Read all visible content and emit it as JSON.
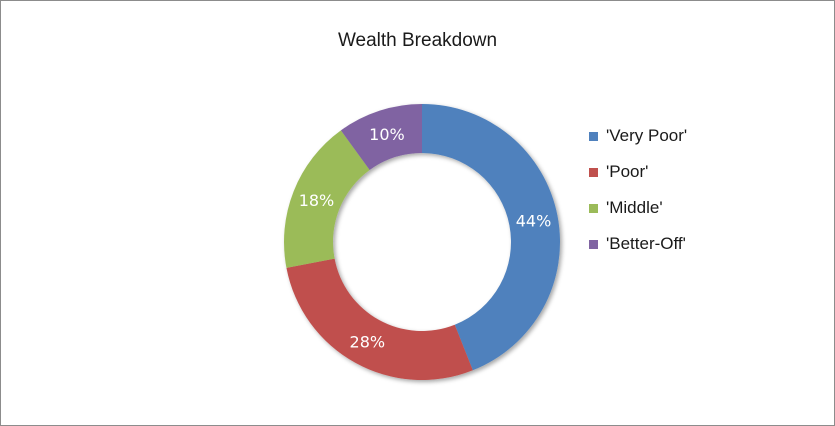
{
  "chart_data": {
    "type": "pie",
    "variant": "doughnut",
    "title": "Wealth Breakdown",
    "categories": [
      "'Very Poor'",
      "'Poor'",
      "'Middle'",
      "'Better-Off'"
    ],
    "values": [
      44,
      28,
      18,
      10
    ],
    "data_labels": [
      "44%",
      "28%",
      "18%",
      "10%"
    ],
    "colors": [
      "#4F81BD",
      "#C0504D",
      "#9BBB59",
      "#8064A2"
    ],
    "legend_position": "right"
  }
}
